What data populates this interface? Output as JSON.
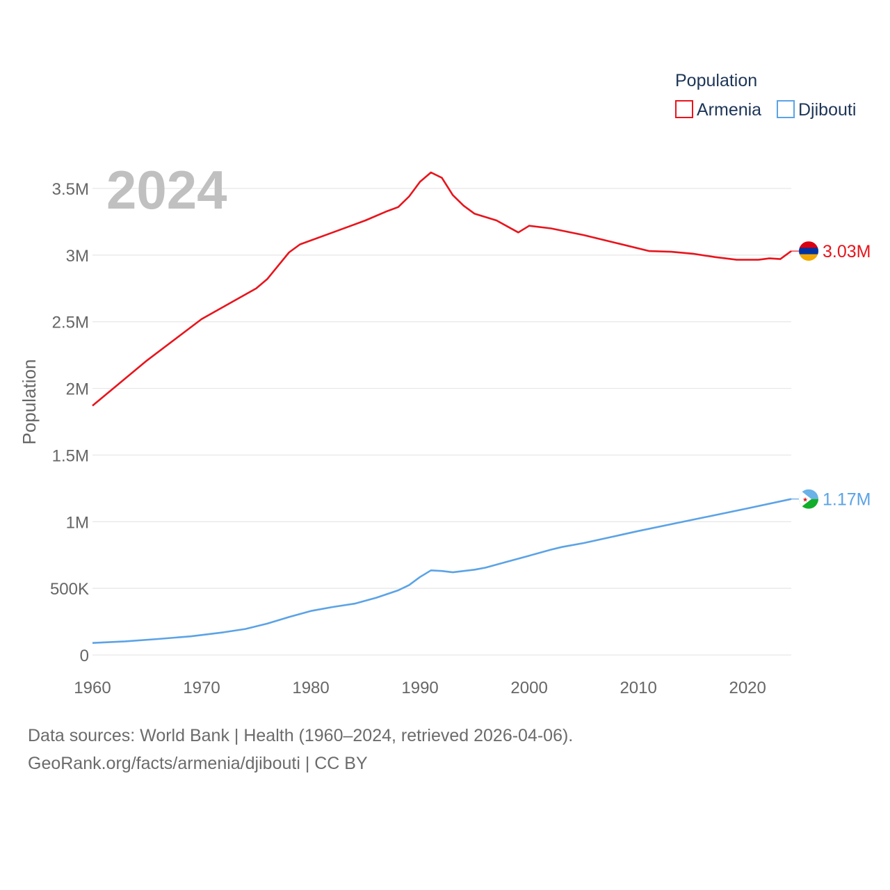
{
  "chart_data": {
    "type": "line",
    "title": "Population",
    "year_display": "2024",
    "ylabel": "Population",
    "xlabel": "",
    "xlim": [
      1960,
      2024
    ],
    "ylim": [
      0,
      3600000
    ],
    "x_ticks": [
      {
        "value": 1960,
        "label": "1960"
      },
      {
        "value": 1970,
        "label": "1970"
      },
      {
        "value": 1980,
        "label": "1980"
      },
      {
        "value": 1990,
        "label": "1990"
      },
      {
        "value": 2000,
        "label": "2000"
      },
      {
        "value": 2010,
        "label": "2010"
      },
      {
        "value": 2020,
        "label": "2020"
      }
    ],
    "y_ticks": [
      {
        "value": 0,
        "label": "0"
      },
      {
        "value": 500000,
        "label": "500K"
      },
      {
        "value": 1000000,
        "label": "1M"
      },
      {
        "value": 1500000,
        "label": "1.5M"
      },
      {
        "value": 2000000,
        "label": "2M"
      },
      {
        "value": 2500000,
        "label": "2.5M"
      },
      {
        "value": 3000000,
        "label": "3M"
      },
      {
        "value": 3500000,
        "label": "3.5M"
      }
    ],
    "grid": true,
    "legend_position": "top-right",
    "series": [
      {
        "name": "Armenia",
        "color": "#e8141c",
        "end_label": "3.03M",
        "flag_icon": "armenia-flag-icon",
        "points": [
          [
            1960,
            1870000
          ],
          [
            1965,
            2210000
          ],
          [
            1970,
            2520000
          ],
          [
            1975,
            2750000
          ],
          [
            1976,
            2820000
          ],
          [
            1978,
            3020000
          ],
          [
            1979,
            3080000
          ],
          [
            1982,
            3170000
          ],
          [
            1985,
            3260000
          ],
          [
            1987,
            3330000
          ],
          [
            1988,
            3360000
          ],
          [
            1989,
            3440000
          ],
          [
            1990,
            3550000
          ],
          [
            1991,
            3620000
          ],
          [
            1992,
            3580000
          ],
          [
            1993,
            3450000
          ],
          [
            1994,
            3370000
          ],
          [
            1995,
            3310000
          ],
          [
            1997,
            3260000
          ],
          [
            1999,
            3170000
          ],
          [
            2000,
            3220000
          ],
          [
            2002,
            3200000
          ],
          [
            2005,
            3150000
          ],
          [
            2008,
            3090000
          ],
          [
            2011,
            3030000
          ],
          [
            2013,
            3025000
          ],
          [
            2015,
            3010000
          ],
          [
            2017,
            2985000
          ],
          [
            2019,
            2965000
          ],
          [
            2021,
            2965000
          ],
          [
            2022,
            2975000
          ],
          [
            2023,
            2970000
          ],
          [
            2024,
            3030000
          ]
        ]
      },
      {
        "name": "Djibouti",
        "color": "#5ba3e6",
        "end_label": "1.17M",
        "flag_icon": "djibouti-flag-icon",
        "points": [
          [
            1960,
            90000
          ],
          [
            1963,
            102000
          ],
          [
            1966,
            120000
          ],
          [
            1969,
            140000
          ],
          [
            1972,
            170000
          ],
          [
            1974,
            195000
          ],
          [
            1976,
            235000
          ],
          [
            1978,
            285000
          ],
          [
            1980,
            330000
          ],
          [
            1982,
            360000
          ],
          [
            1984,
            385000
          ],
          [
            1986,
            430000
          ],
          [
            1988,
            485000
          ],
          [
            1989,
            525000
          ],
          [
            1990,
            585000
          ],
          [
            1991,
            635000
          ],
          [
            1992,
            630000
          ],
          [
            1993,
            620000
          ],
          [
            1994,
            630000
          ],
          [
            1995,
            640000
          ],
          [
            1996,
            655000
          ],
          [
            1998,
            700000
          ],
          [
            2000,
            745000
          ],
          [
            2002,
            790000
          ],
          [
            2003,
            810000
          ],
          [
            2005,
            840000
          ],
          [
            2010,
            930000
          ],
          [
            2015,
            1015000
          ],
          [
            2020,
            1100000
          ],
          [
            2024,
            1170000
          ]
        ]
      }
    ]
  },
  "legend": {
    "title": "Population",
    "items": [
      {
        "label": "Armenia",
        "color": "#e8141c"
      },
      {
        "label": "Djibouti",
        "color": "#5ba3e6"
      }
    ]
  },
  "footer": {
    "line1": "Data sources: World Bank | Health (1960–2024, retrieved 2026-04-06).",
    "line2": "GeoRank.org/facts/armenia/djibouti | CC BY"
  }
}
